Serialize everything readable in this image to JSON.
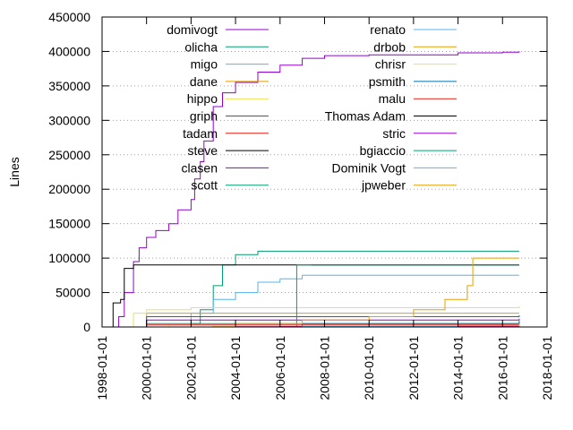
{
  "chart_data": {
    "type": "line",
    "title": "",
    "xlabel": "",
    "ylabel": "Lines",
    "xlim": [
      "1998-01-01",
      "2018-01-01"
    ],
    "ylim": [
      0,
      450000
    ],
    "x_ticks": [
      "1998-01-01",
      "2000-01-01",
      "2002-01-01",
      "2004-01-01",
      "2006-01-01",
      "2008-01-01",
      "2010-01-01",
      "2012-01-01",
      "2014-01-01",
      "2016-01-01",
      "2018-01-01"
    ],
    "y_ticks": [
      0,
      50000,
      100000,
      150000,
      200000,
      250000,
      300000,
      350000,
      400000,
      450000
    ],
    "y_tick_labels": [
      "0",
      "50000",
      "100000",
      "150000",
      "200000",
      "250000",
      "300000",
      "350000",
      "400000",
      "450000"
    ],
    "grid": "horizontal dotted",
    "legend_placement": "top-inside, two columns",
    "series": [
      {
        "name": "domivogt",
        "color": "#9400d3",
        "points": [
          [
            "1998-08-01",
            0
          ],
          [
            "1998-10-01",
            15000
          ],
          [
            "1999-01-01",
            50000
          ],
          [
            "1999-06-01",
            95000
          ],
          [
            "1999-09-01",
            115000
          ],
          [
            "2000-01-01",
            130000
          ],
          [
            "2000-06-01",
            140000
          ],
          [
            "2001-01-01",
            150000
          ],
          [
            "2001-06-01",
            170000
          ],
          [
            "2002-01-01",
            185000
          ],
          [
            "2002-03-01",
            215000
          ],
          [
            "2002-06-01",
            240000
          ],
          [
            "2002-08-01",
            270000
          ],
          [
            "2003-01-01",
            320000
          ],
          [
            "2003-06-01",
            340000
          ],
          [
            "2004-01-01",
            355000
          ],
          [
            "2005-01-01",
            370000
          ],
          [
            "2006-01-01",
            380000
          ],
          [
            "2007-01-01",
            390000
          ],
          [
            "2008-01-01",
            394000
          ],
          [
            "2010-01-01",
            395000
          ],
          [
            "2014-01-01",
            398000
          ],
          [
            "2016-01-01",
            399000
          ],
          [
            "2016-10-01",
            400000
          ]
        ]
      },
      {
        "name": "olicha",
        "color": "#009e73",
        "points": [
          [
            "2000-01-01",
            0
          ],
          [
            "2002-01-01",
            5000
          ],
          [
            "2002-06-01",
            25000
          ],
          [
            "2003-01-01",
            60000
          ],
          [
            "2003-06-01",
            90000
          ],
          [
            "2004-01-01",
            105000
          ],
          [
            "2005-01-01",
            110000
          ],
          [
            "2016-10-01",
            110000
          ]
        ]
      },
      {
        "name": "migo",
        "color": "#56b4e9",
        "points": [
          [
            "2000-06-01",
            0
          ],
          [
            "2002-01-01",
            20000
          ],
          [
            "2003-01-01",
            40000
          ],
          [
            "2004-01-01",
            50000
          ],
          [
            "2005-01-01",
            65000
          ],
          [
            "2006-01-01",
            70000
          ],
          [
            "2007-01-01",
            75000
          ],
          [
            "2016-10-01",
            75000
          ]
        ]
      },
      {
        "name": "dane",
        "color": "#e69f00",
        "points": [
          [
            "1998-10-01",
            0
          ],
          [
            "2000-01-01",
            20000
          ],
          [
            "2002-01-01",
            20000
          ],
          [
            "2016-10-01",
            20000
          ]
        ]
      },
      {
        "name": "hippo",
        "color": "#f0e442",
        "points": [
          [
            "1998-10-01",
            0
          ],
          [
            "1999-06-01",
            20000
          ],
          [
            "2000-01-01",
            25000
          ],
          [
            "2002-01-01",
            28000
          ],
          [
            "2016-10-01",
            30000
          ]
        ]
      },
      {
        "name": "griph",
        "color": "#0072b2",
        "points": [
          [
            "1999-03-01",
            0
          ],
          [
            "2000-01-01",
            15000
          ],
          [
            "2016-10-01",
            17000
          ]
        ]
      },
      {
        "name": "tadam",
        "color": "#e51e10",
        "points": [
          [
            "1999-01-01",
            0
          ],
          [
            "2000-01-01",
            3000
          ],
          [
            "2016-10-01",
            3500
          ]
        ]
      },
      {
        "name": "steve",
        "color": "#000000",
        "points": [
          [
            "1998-06-01",
            0
          ],
          [
            "1998-07-01",
            35000
          ],
          [
            "1998-11-01",
            40000
          ],
          [
            "1999-01-01",
            85000
          ],
          [
            "1999-06-01",
            90000
          ],
          [
            "2016-10-01",
            90000
          ]
        ]
      },
      {
        "name": "clasen",
        "color": "#9400d3",
        "points": [
          [
            "1999-01-01",
            0
          ],
          [
            "2000-01-01",
            10000
          ],
          [
            "2016-10-01",
            12000
          ]
        ]
      },
      {
        "name": "scott",
        "color": "#009e73",
        "points": [
          [
            "1999-01-01",
            0
          ],
          [
            "2000-01-01",
            5000
          ],
          [
            "2016-10-01",
            6000
          ]
        ]
      },
      {
        "name": "renato",
        "color": "#56b4e9",
        "points": [
          [
            "2006-06-01",
            0
          ],
          [
            "2007-01-01",
            2000
          ],
          [
            "2016-10-01",
            8000
          ]
        ]
      },
      {
        "name": "drbob",
        "color": "#e69f00",
        "points": [
          [
            "2002-01-01",
            0
          ],
          [
            "2003-01-01",
            1500
          ],
          [
            "2016-10-01",
            3000
          ]
        ]
      },
      {
        "name": "chrisr",
        "color": "#f0e442",
        "points": [
          [
            "2000-06-01",
            0
          ],
          [
            "2001-01-01",
            2000
          ],
          [
            "2016-10-01",
            5000
          ]
        ]
      },
      {
        "name": "psmith",
        "color": "#0072b2",
        "points": [
          [
            "2006-06-01",
            0
          ],
          [
            "2007-01-01",
            5000
          ],
          [
            "2016-10-01",
            9000
          ]
        ]
      },
      {
        "name": "malu",
        "color": "#e51e10",
        "points": [
          [
            "2005-01-01",
            0
          ],
          [
            "2006-01-01",
            500
          ],
          [
            "2016-10-01",
            1000
          ]
        ]
      },
      {
        "name": "Thomas Adam",
        "color": "#000000",
        "points": [
          [
            "2007-06-01",
            90000
          ],
          [
            "2016-10-01",
            90000
          ]
        ]
      },
      {
        "name": "stric",
        "color": "#9400d3",
        "points": [
          [
            "2003-01-01",
            0
          ],
          [
            "2004-01-01",
            200
          ],
          [
            "2016-10-01",
            300
          ]
        ]
      },
      {
        "name": "bgiaccio",
        "color": "#009e73",
        "points": [
          [
            "2006-09-01",
            0
          ],
          [
            "2006-10-01",
            90000
          ],
          [
            "2016-10-01",
            90000
          ]
        ]
      },
      {
        "name": "Dominik Vogt",
        "color": "#56b4e9",
        "points": [
          [
            "2006-06-01",
            0
          ],
          [
            "2007-01-01",
            1000
          ],
          [
            "2014-01-01",
            2000
          ],
          [
            "2016-10-01",
            2500
          ]
        ]
      },
      {
        "name": "jpweber",
        "color": "#e69f00",
        "points": [
          [
            "2003-06-01",
            0
          ],
          [
            "2004-01-01",
            5000
          ],
          [
            "2007-01-01",
            10000
          ],
          [
            "2010-01-01",
            15000
          ],
          [
            "2012-01-01",
            25000
          ],
          [
            "2013-06-01",
            40000
          ],
          [
            "2014-06-01",
            60000
          ],
          [
            "2014-09-01",
            100000
          ],
          [
            "2016-10-01",
            100000
          ]
        ]
      }
    ]
  }
}
